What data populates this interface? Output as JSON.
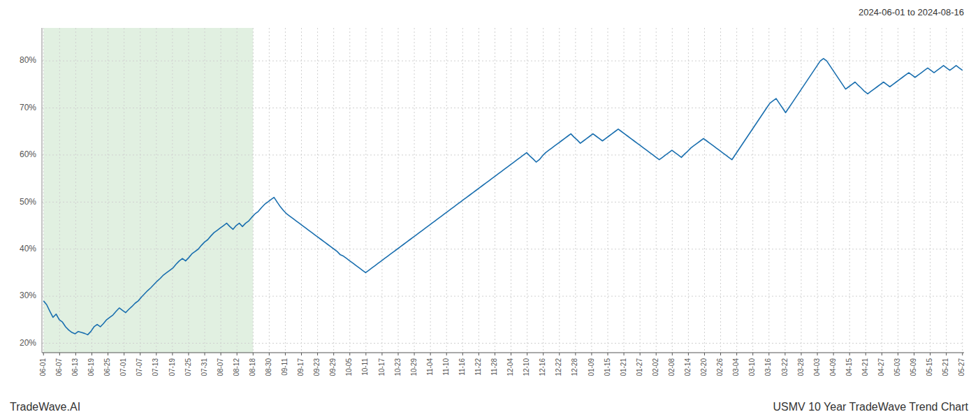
{
  "chart_data": {
    "type": "line",
    "title": "2024-06-01 to 2024-08-16",
    "annotations": [
      "TradeWave.AI",
      "USMV 10 Year TradeWave Trend Chart"
    ],
    "color": "#1a6faf",
    "grid": true,
    "shade": {
      "from": "06-01",
      "to": "08-18",
      "color": "#d4ead4"
    },
    "ylim": [
      18,
      87
    ],
    "yticks": [
      {
        "value": 20,
        "label": "20%"
      },
      {
        "value": 30,
        "label": "30%"
      },
      {
        "value": 40,
        "label": "40%"
      },
      {
        "value": 50,
        "label": "50%"
      },
      {
        "value": 60,
        "label": "60%"
      },
      {
        "value": 70,
        "label": "70%"
      },
      {
        "value": 80,
        "label": "80%"
      }
    ],
    "xlim": [
      -0.5,
      291.5
    ],
    "xticks": [
      {
        "value": 0,
        "label": "06-01"
      },
      {
        "value": 5.105263157895,
        "label": "06-07"
      },
      {
        "value": 10.210526315789,
        "label": "06-13"
      },
      {
        "value": 15.315789473684,
        "label": "06-19"
      },
      {
        "value": 20.421052631579,
        "label": "06-25"
      },
      {
        "value": 25.526315789474,
        "label": "07-01"
      },
      {
        "value": 30.631578947368,
        "label": "07-07"
      },
      {
        "value": 35.736842105263,
        "label": "07-13"
      },
      {
        "value": 40.842105263158,
        "label": "07-19"
      },
      {
        "value": 45.947368421053,
        "label": "07-25"
      },
      {
        "value": 51.052631578947,
        "label": "07-31"
      },
      {
        "value": 56.157894736842,
        "label": "08-07"
      },
      {
        "value": 61.263157894737,
        "label": "08-12"
      },
      {
        "value": 66.368421052632,
        "label": "08-18"
      },
      {
        "value": 71.473684210526,
        "label": "08-30"
      },
      {
        "value": 76.578947368421,
        "label": "09-11"
      },
      {
        "value": 81.684210526316,
        "label": "09-17"
      },
      {
        "value": 86.789473684211,
        "label": "09-23"
      },
      {
        "value": 91.894736842105,
        "label": "09-29"
      },
      {
        "value": 97,
        "label": "10-05"
      },
      {
        "value": 102.105263157895,
        "label": "10-11"
      },
      {
        "value": 107.210526315789,
        "label": "10-17"
      },
      {
        "value": 112.315789473684,
        "label": "10-23"
      },
      {
        "value": 117.421052631579,
        "label": "10-29"
      },
      {
        "value": 122.526315789474,
        "label": "11-04"
      },
      {
        "value": 127.631578947368,
        "label": "11-10"
      },
      {
        "value": 132.736842105263,
        "label": "11-16"
      },
      {
        "value": 137.842105263158,
        "label": "11-22"
      },
      {
        "value": 142.947368421053,
        "label": "11-28"
      },
      {
        "value": 148.052631578947,
        "label": "12-04"
      },
      {
        "value": 153.157894736842,
        "label": "12-10"
      },
      {
        "value": 158.263157894737,
        "label": "12-16"
      },
      {
        "value": 163.368421052632,
        "label": "12-22"
      },
      {
        "value": 168.473684210526,
        "label": "12-28"
      },
      {
        "value": 173.578947368421,
        "label": "01-09"
      },
      {
        "value": 178.684210526316,
        "label": "01-15"
      },
      {
        "value": 183.789473684211,
        "label": "01-21"
      },
      {
        "value": 188.894736842105,
        "label": "01-27"
      },
      {
        "value": 194,
        "label": "02-02"
      },
      {
        "value": 199.105263157895,
        "label": "02-08"
      },
      {
        "value": 204.210526315789,
        "label": "02-14"
      },
      {
        "value": 209.315789473684,
        "label": "02-20"
      },
      {
        "value": 214.421052631579,
        "label": "02-26"
      },
      {
        "value": 219.526315789474,
        "label": "03-04"
      },
      {
        "value": 224.631578947368,
        "label": "03-10"
      },
      {
        "value": 229.736842105263,
        "label": "03-16"
      },
      {
        "value": 234.842105263158,
        "label": "03-22"
      },
      {
        "value": 239.947368421053,
        "label": "03-28"
      },
      {
        "value": 245.052631578947,
        "label": "04-03"
      },
      {
        "value": 250.157894736842,
        "label": "04-09"
      },
      {
        "value": 255.263157894737,
        "label": "04-15"
      },
      {
        "value": 260.368421052632,
        "label": "04-21"
      },
      {
        "value": 265.473684210526,
        "label": "04-27"
      },
      {
        "value": 270.578947368421,
        "label": "05-03"
      },
      {
        "value": 275.684210526316,
        "label": "05-09"
      },
      {
        "value": 280.789473684211,
        "label": "05-15"
      },
      {
        "value": 285.894736842105,
        "label": "05-21"
      },
      {
        "value": 291,
        "label": "05-27"
      }
    ],
    "values": [
      29.0,
      28.2,
      26.8,
      25.5,
      26.2,
      25.0,
      24.5,
      23.5,
      22.8,
      22.3,
      22.0,
      22.5,
      22.3,
      22.1,
      21.8,
      22.5,
      23.5,
      24.0,
      23.5,
      24.2,
      25.0,
      25.5,
      26.0,
      26.8,
      27.5,
      27.0,
      26.5,
      27.2,
      27.8,
      28.5,
      29.0,
      29.8,
      30.5,
      31.2,
      31.8,
      32.5,
      33.2,
      33.8,
      34.5,
      35.0,
      35.5,
      36.0,
      36.8,
      37.5,
      38.0,
      37.5,
      38.2,
      39.0,
      39.5,
      40.0,
      40.8,
      41.5,
      42.0,
      42.8,
      43.5,
      44.0,
      44.5,
      45.0,
      45.5,
      44.8,
      44.2,
      45.0,
      45.5,
      44.8,
      45.5,
      46.0,
      46.8,
      47.5,
      48.0,
      48.8,
      49.5,
      50.0,
      50.5,
      51.0,
      50.0,
      49.0,
      48.2,
      47.5,
      47.0,
      46.5,
      46.0,
      45.5,
      45.0,
      44.5,
      44.0,
      43.5,
      43.0,
      42.5,
      42.0,
      41.5,
      41.0,
      40.5,
      40.0,
      39.5,
      38.8,
      38.5,
      38.0,
      37.5,
      37.0,
      36.5,
      36.0,
      35.5,
      35.0,
      35.5,
      36.0,
      36.5,
      37.0,
      37.5,
      38.0,
      38.5,
      39.0,
      39.5,
      40.0,
      40.5,
      41.0,
      41.5,
      42.0,
      42.5,
      43.0,
      43.5,
      44.0,
      44.5,
      45.0,
      45.5,
      46.0,
      46.5,
      47.0,
      47.5,
      48.0,
      48.5,
      49.0,
      49.5,
      50.0,
      50.5,
      51.0,
      51.5,
      52.0,
      52.5,
      53.0,
      53.5,
      54.0,
      54.5,
      55.0,
      55.5,
      56.0,
      56.5,
      57.0,
      57.5,
      58.0,
      58.5,
      59.0,
      59.5,
      60.0,
      60.5,
      59.8,
      59.2,
      58.5,
      59.0,
      59.8,
      60.5,
      61.0,
      61.5,
      62.0,
      62.5,
      63.0,
      63.5,
      64.0,
      64.5,
      63.8,
      63.2,
      62.5,
      63.0,
      63.5,
      64.0,
      64.5,
      64.0,
      63.5,
      63.0,
      63.5,
      64.0,
      64.5,
      65.0,
      65.5,
      65.0,
      64.5,
      64.0,
      63.5,
      63.0,
      62.5,
      62.0,
      61.5,
      61.0,
      60.5,
      60.0,
      59.5,
      59.0,
      59.5,
      60.0,
      60.5,
      61.0,
      60.5,
      60.0,
      59.5,
      60.2,
      60.8,
      61.5,
      62.0,
      62.5,
      63.0,
      63.5,
      63.0,
      62.5,
      62.0,
      61.5,
      61.0,
      60.5,
      60.0,
      59.5,
      59.0,
      60.0,
      61.0,
      62.0,
      63.0,
      64.0,
      65.0,
      66.0,
      67.0,
      68.0,
      69.0,
      70.0,
      71.0,
      71.5,
      72.0,
      71.0,
      70.0,
      69.0,
      70.0,
      71.0,
      72.0,
      73.0,
      74.0,
      75.0,
      76.0,
      77.0,
      78.0,
      79.0,
      80.0,
      80.5,
      80.0,
      79.0,
      78.0,
      77.0,
      76.0,
      75.0,
      74.0,
      74.5,
      75.0,
      75.5,
      74.8,
      74.2,
      73.5,
      73.0,
      73.5,
      74.0,
      74.5,
      75.0,
      75.5,
      75.0,
      74.5,
      75.0,
      75.5,
      76.0,
      76.5,
      77.0,
      77.5,
      77.0,
      76.5,
      77.0,
      77.5,
      78.0,
      78.5,
      78.0,
      77.5,
      78.0,
      78.5,
      79.0,
      78.5,
      78.0,
      78.5,
      79.0,
      78.5,
      78.0
    ]
  }
}
